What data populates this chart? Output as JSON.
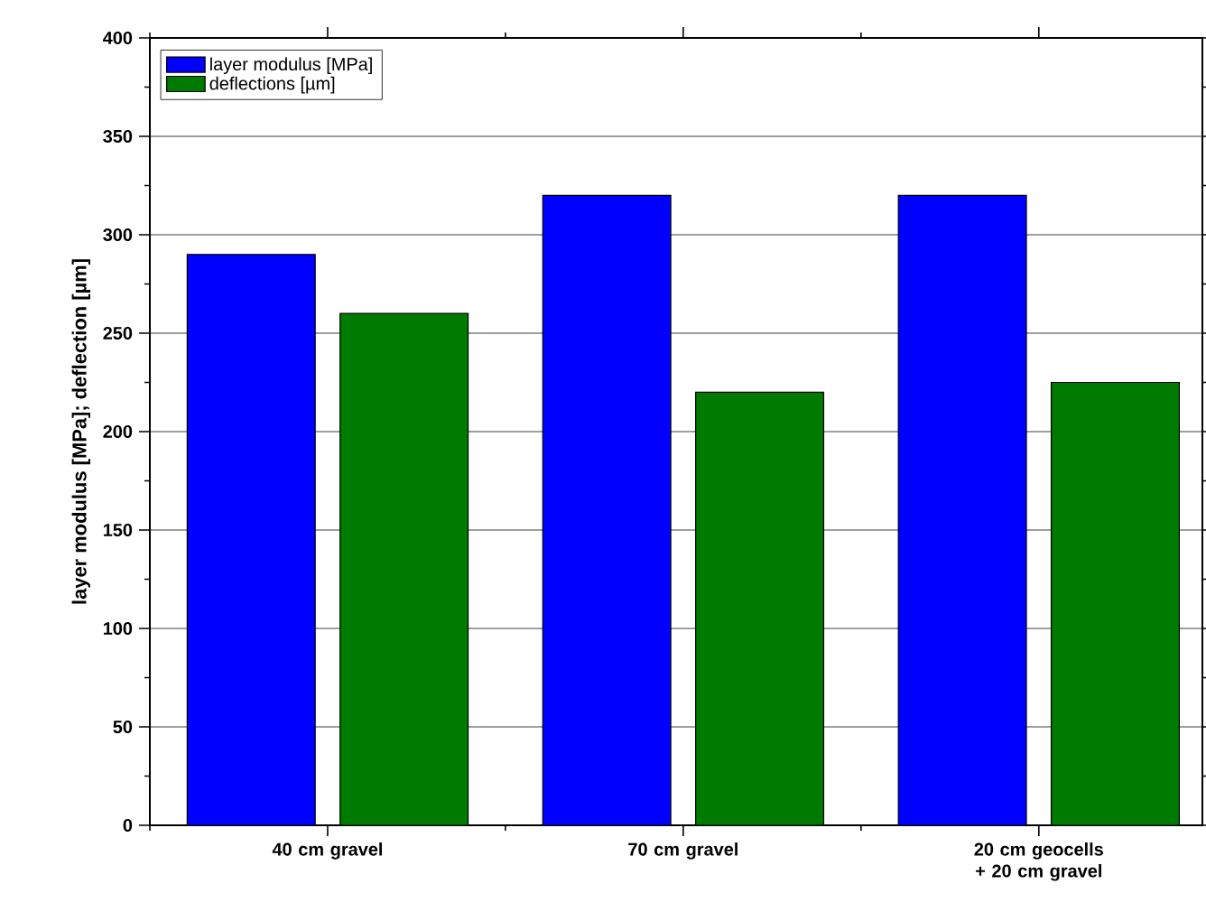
{
  "chart_data": {
    "type": "bar",
    "ylabel": "layer modulus [MPa]; deflection [µm]",
    "categories": [
      "40 cm gravel",
      "70 cm gravel",
      "20 cm geocells + 20 cm gravel"
    ],
    "series": [
      {
        "name": "layer modulus [MPa]",
        "color": "#0000ff",
        "values": [
          290,
          320,
          320
        ]
      },
      {
        "name": "deflections [µm]",
        "color": "#007a00",
        "values": [
          260,
          220,
          225
        ]
      }
    ],
    "ylim": [
      0,
      400
    ],
    "yticks": [
      0,
      50,
      100,
      150,
      200,
      250,
      300,
      350,
      400
    ],
    "grid": "y",
    "legend": "top left"
  }
}
